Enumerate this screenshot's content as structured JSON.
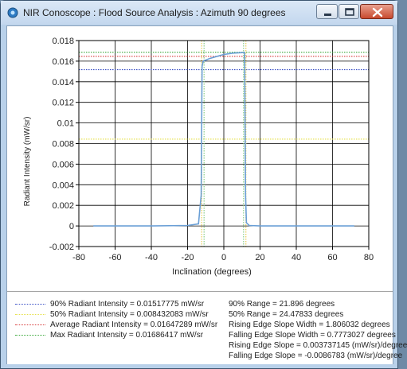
{
  "window": {
    "title": "NIR Conoscope : Flood Source Analysis : Azimuth 90 degrees",
    "icon": "conoscope-app-icon",
    "controls": [
      "minimize-icon",
      "maximize-icon",
      "close-icon"
    ]
  },
  "chart_data": {
    "type": "line",
    "title": "",
    "xlabel": "Inclination (degrees)",
    "ylabel": "Radiant Intensity (mW/sr)",
    "xlim": [
      -80,
      80
    ],
    "ylim": [
      -0.002,
      0.018
    ],
    "x_ticks": [
      "-80",
      "-60",
      "-40",
      "-20",
      "0",
      "20",
      "40",
      "60",
      "80"
    ],
    "y_ticks": [
      "-0.002",
      "0",
      "0.002",
      "0.004",
      "0.006",
      "0.008",
      "0.01",
      "0.012",
      "0.014",
      "0.016",
      "0.018"
    ],
    "grid": true,
    "series": [
      {
        "color": "#6a9fd6",
        "x": [
          -72,
          -60,
          -40,
          -20,
          -14,
          -12.5,
          -12,
          -11.5,
          -11,
          -10,
          -8,
          -5,
          0,
          5,
          10,
          11,
          11.5,
          12,
          12.5,
          14,
          20,
          40,
          60,
          72
        ],
        "y": [
          0,
          0,
          0,
          5e-05,
          0.0002,
          0.003,
          0.0155,
          0.0159,
          0.01605,
          0.0161,
          0.01625,
          0.0164,
          0.01665,
          0.01678,
          0.01683,
          0.01686,
          0.0168,
          0.003,
          0.0003,
          5e-05,
          0,
          0,
          0,
          0
        ]
      }
    ],
    "reference_lines": [
      {
        "orientation": "horizontal",
        "value": 0.01517775,
        "color": "#3a4fc4"
      },
      {
        "orientation": "horizontal",
        "value": 0.008432083,
        "color": "#e6e04a"
      },
      {
        "orientation": "horizontal",
        "value": 0.01647289,
        "color": "#d63a3a"
      },
      {
        "orientation": "horizontal",
        "value": 0.01686417,
        "color": "#3aa83a"
      },
      {
        "orientation": "vertical",
        "value": -12.2,
        "color": "#e6c84a"
      },
      {
        "orientation": "vertical",
        "value": 12.2,
        "color": "#e6c84a"
      },
      {
        "orientation": "vertical",
        "value": -10.9,
        "color": "#7ec87e"
      },
      {
        "orientation": "vertical",
        "value": 10.9,
        "color": "#7ec87e"
      }
    ],
    "legend_placement": "bottom"
  },
  "legend": {
    "items": [
      {
        "label": "90% Radiant Intensity = 0.01517775 mW/sr",
        "color": "#3a4fc4"
      },
      {
        "label": "50% Radiant Intensity = 0.008432083 mW/sr",
        "color": "#e6e04a"
      },
      {
        "label": "Average Radiant Intensity = 0.01647289 mW/sr",
        "color": "#d63a3a"
      },
      {
        "label": "Max Radiant Intensity = 0.01686417 mW/sr",
        "color": "#3aa83a"
      }
    ],
    "stats": [
      "90% Range = 21.896 degrees",
      "50% Range = 24.47833 degrees",
      "Rising Edge Slope Width = 1.806032 degrees",
      "Falling Edge Slope Width = 0.7773027 degrees",
      "Rising Edge Slope = 0.003737145 (mW/sr)/degree",
      "Falling Edge Slope = -0.0086783 (mW/sr)/degree"
    ]
  }
}
